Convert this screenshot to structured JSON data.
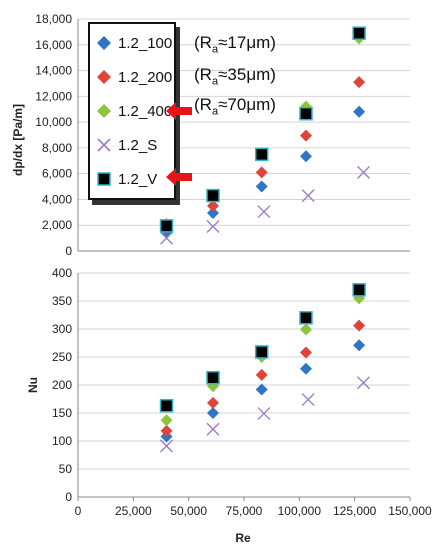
{
  "chart_data": [
    {
      "type": "scatter",
      "xlabel": "",
      "ylabel": "dp/dx [Pa/m]",
      "xlim": [
        0,
        150000
      ],
      "ylim": [
        0,
        18000
      ],
      "yticks": [
        "0",
        "2,000",
        "4,000",
        "6,000",
        "8,000",
        "10,000",
        "12,000",
        "14,000",
        "16,000",
        "18,000"
      ],
      "grid": "horizontal",
      "series": [
        {
          "name": "1.2_100",
          "x": [
            40000,
            61000,
            83000,
            103000,
            127000
          ],
          "y": [
            1500,
            2950,
            5000,
            7350,
            10800
          ]
        },
        {
          "name": "1.2_200",
          "x": [
            40000,
            61000,
            83000,
            103000,
            127000
          ],
          "y": [
            1800,
            3500,
            6100,
            8950,
            13100
          ]
        },
        {
          "name": "1.2_400",
          "x": [
            40000,
            61000,
            83000,
            103000,
            127000
          ],
          "y": [
            2100,
            4200,
            7400,
            11200,
            16500
          ]
        },
        {
          "name": "1.2_S",
          "x": [
            40000,
            61000,
            84000,
            104000,
            129000
          ],
          "y": [
            1000,
            1900,
            3050,
            4300,
            6100
          ]
        },
        {
          "name": "1.2_V",
          "x": [
            40000,
            61000,
            83000,
            103000,
            127000
          ],
          "y": [
            1950,
            4300,
            7500,
            10650,
            16900
          ]
        }
      ]
    },
    {
      "type": "scatter",
      "xlabel": "Re",
      "ylabel": "Nu",
      "xlim": [
        0,
        150000
      ],
      "ylim": [
        0,
        400
      ],
      "xticks": [
        "0",
        "25,000",
        "50,000",
        "75,000",
        "100,000",
        "125,000",
        "150,000"
      ],
      "yticks": [
        "0",
        "50",
        "100",
        "150",
        "200",
        "250",
        "300",
        "350",
        "400"
      ],
      "grid": "horizontal",
      "series": [
        {
          "name": "1.2_100",
          "x": [
            40000,
            61000,
            83000,
            103000,
            127000
          ],
          "y": [
            108,
            150,
            192,
            229,
            271
          ]
        },
        {
          "name": "1.2_200",
          "x": [
            40000,
            61000,
            83000,
            103000,
            127000
          ],
          "y": [
            118,
            168,
            218,
            258,
            306
          ]
        },
        {
          "name": "1.2_400",
          "x": [
            40000,
            61000,
            83000,
            103000,
            127000
          ],
          "y": [
            137,
            198,
            250,
            299,
            355
          ]
        },
        {
          "name": "1.2_S",
          "x": [
            40000,
            61000,
            84000,
            104000,
            129000
          ],
          "y": [
            91,
            121,
            149,
            174,
            204
          ]
        },
        {
          "name": "1.2_V",
          "x": [
            40000,
            61000,
            83000,
            103000,
            127000
          ],
          "y": [
            163,
            213,
            259,
            320,
            370
          ]
        }
      ]
    }
  ],
  "legend": {
    "items": [
      "1.2_100",
      "1.2_200",
      "1.2_400",
      "1.2_S",
      "1.2_V"
    ]
  },
  "annotations": [
    {
      "prefix": "(R",
      "sub": "a",
      "suffix": "≈17μm)"
    },
    {
      "prefix": "(R",
      "sub": "a",
      "suffix": "≈35μm)"
    },
    {
      "prefix": "(R",
      "sub": "a",
      "suffix": "≈70μm)"
    }
  ],
  "colors": {
    "1.2_100": "#2e75c6",
    "1.2_200": "#e0433a",
    "1.2_400": "#8cc43c",
    "1.2_S": "#9a7ec0",
    "1.2_V": "#000000",
    "1.2_V_edge": "#2cb7c8",
    "arrow": "#e8131b",
    "grid": "#d4d4d4"
  }
}
